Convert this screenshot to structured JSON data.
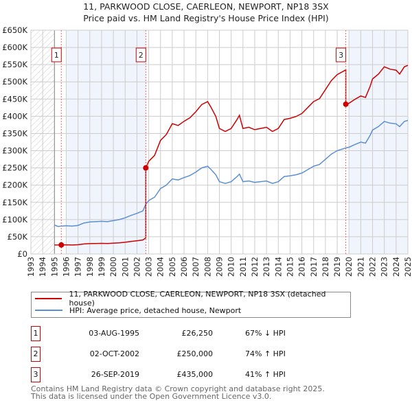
{
  "chart_data": {
    "type": "line",
    "title": "11, PARKWOOD CLOSE, CAERLEON, NEWPORT, NP18 3SX",
    "subtitle": "Price paid vs. HM Land Registry's House Price Index (HPI)",
    "ylim": [
      0,
      650000
    ],
    "xlim": [
      1993,
      2025
    ],
    "y_ticks": [
      {
        "v": 0,
        "label": "£0"
      },
      {
        "v": 50000,
        "label": "£50K"
      },
      {
        "v": 100000,
        "label": "£100K"
      },
      {
        "v": 150000,
        "label": "£150K"
      },
      {
        "v": 200000,
        "label": "£200K"
      },
      {
        "v": 250000,
        "label": "£250K"
      },
      {
        "v": 300000,
        "label": "£300K"
      },
      {
        "v": 350000,
        "label": "£350K"
      },
      {
        "v": 400000,
        "label": "£400K"
      },
      {
        "v": 450000,
        "label": "£450K"
      },
      {
        "v": 500000,
        "label": "£500K"
      },
      {
        "v": 550000,
        "label": "£550K"
      },
      {
        "v": 600000,
        "label": "£600K"
      },
      {
        "v": 650000,
        "label": "£650K"
      }
    ],
    "x_ticks": [
      "1993",
      "1994",
      "1995",
      "1996",
      "1997",
      "1998",
      "1999",
      "2000",
      "2001",
      "2002",
      "2003",
      "2004",
      "2005",
      "2006",
      "2007",
      "2008",
      "2009",
      "2010",
      "2011",
      "2012",
      "2013",
      "2014",
      "2015",
      "2016",
      "2017",
      "2018",
      "2019",
      "2020",
      "2021",
      "2022",
      "2023",
      "2024",
      "2025"
    ],
    "grid": true,
    "hpi_series": {
      "name": "HPI: Average price, detached house, Newport",
      "color": "#5b8fd4",
      "x": [
        1995.0,
        1995.3,
        1995.6,
        1996,
        1996.5,
        1997,
        1997.5,
        1998,
        1998.5,
        1999,
        1999.5,
        2000,
        2000.5,
        2001,
        2001.5,
        2002,
        2002.5,
        2002.75,
        2003,
        2003.5,
        2004,
        2004.5,
        2005,
        2005.5,
        2006,
        2006.5,
        2007,
        2007.5,
        2008,
        2008.3,
        2008.7,
        2009,
        2009.5,
        2010,
        2010.5,
        2010.7,
        2011,
        2011.5,
        2012,
        2012.5,
        2013,
        2013.5,
        2014,
        2014.5,
        2015,
        2015.5,
        2016,
        2016.5,
        2017,
        2017.5,
        2018,
        2018.5,
        2019,
        2019.73,
        2020,
        2020.5,
        2021,
        2021.4,
        2021.8,
        2022,
        2022.5,
        2023,
        2023.5,
        2024,
        2024.3,
        2024.7,
        2025
      ],
      "y": [
        84000,
        80000,
        81000,
        82000,
        81000,
        83000,
        90000,
        93000,
        94000,
        95000,
        94000,
        97000,
        100000,
        105000,
        112000,
        118000,
        125000,
        144000,
        155000,
        165000,
        190000,
        200000,
        218000,
        215000,
        222000,
        228000,
        238000,
        250000,
        255000,
        245000,
        230000,
        210000,
        205000,
        210000,
        225000,
        232000,
        210000,
        212000,
        208000,
        210000,
        212000,
        205000,
        210000,
        225000,
        227000,
        230000,
        235000,
        245000,
        255000,
        260000,
        275000,
        290000,
        300000,
        308000,
        310000,
        318000,
        325000,
        322000,
        345000,
        360000,
        370000,
        385000,
        380000,
        378000,
        370000,
        385000,
        388000
      ]
    },
    "price_series": {
      "name": "11, PARKWOOD CLOSE, CAERLEON, NEWPORT, NP18 3SX (detached house)",
      "color": "#cc0000"
    },
    "sales": [
      {
        "n": "1",
        "x": 1995.58,
        "date": "03-AUG-1995",
        "price": 26250,
        "price_label": "£26,250",
        "hpi": "67% ↓ HPI"
      },
      {
        "n": "2",
        "x": 2002.75,
        "date": "02-OCT-2002",
        "price": 250000,
        "price_label": "£250,000",
        "hpi": "74% ↑ HPI"
      },
      {
        "n": "3",
        "x": 2019.73,
        "date": "26-SEP-2019",
        "price": 435000,
        "price_label": "£435,000",
        "hpi": "41% ↑ HPI"
      }
    ]
  },
  "footer": {
    "line1": "Contains HM Land Registry data © Crown copyright and database right 2025.",
    "line2": "This data is licensed under the Open Government Licence v3.0."
  }
}
